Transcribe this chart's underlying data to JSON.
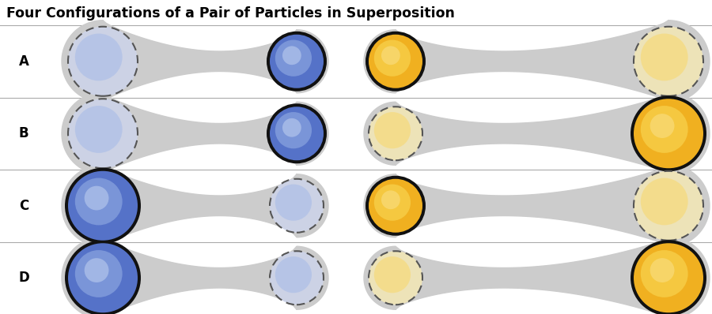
{
  "title": "Four Configurations of a Pair of Particles in Superposition",
  "rows": [
    "A",
    "B",
    "C",
    "D"
  ],
  "background": "#ffffff",
  "dumbbell_color": "#cccccc",
  "separator_color": "#aaaaaa",
  "blue_solid": "#5572c8",
  "blue_mid": "#7a95d8",
  "blue_light": "#a8bce8",
  "blue_highlight": "#ccd5f0",
  "yellow_solid": "#f0b020",
  "yellow_mid": "#f5c840",
  "yellow_light": "#f8d870",
  "yellow_highlight": "#fcedb0",
  "black_ring": "#111111",
  "dashed_color": "#555555",
  "configs": [
    {
      "left_blue_solid": false,
      "right_blue_solid": true,
      "left_yellow_solid": true,
      "right_yellow_solid": false
    },
    {
      "left_blue_solid": false,
      "right_blue_solid": true,
      "left_yellow_solid": false,
      "right_yellow_solid": true
    },
    {
      "left_blue_solid": true,
      "right_blue_solid": false,
      "left_yellow_solid": true,
      "right_yellow_solid": false
    },
    {
      "left_blue_solid": true,
      "right_blue_solid": false,
      "left_yellow_solid": false,
      "right_yellow_solid": true
    }
  ]
}
